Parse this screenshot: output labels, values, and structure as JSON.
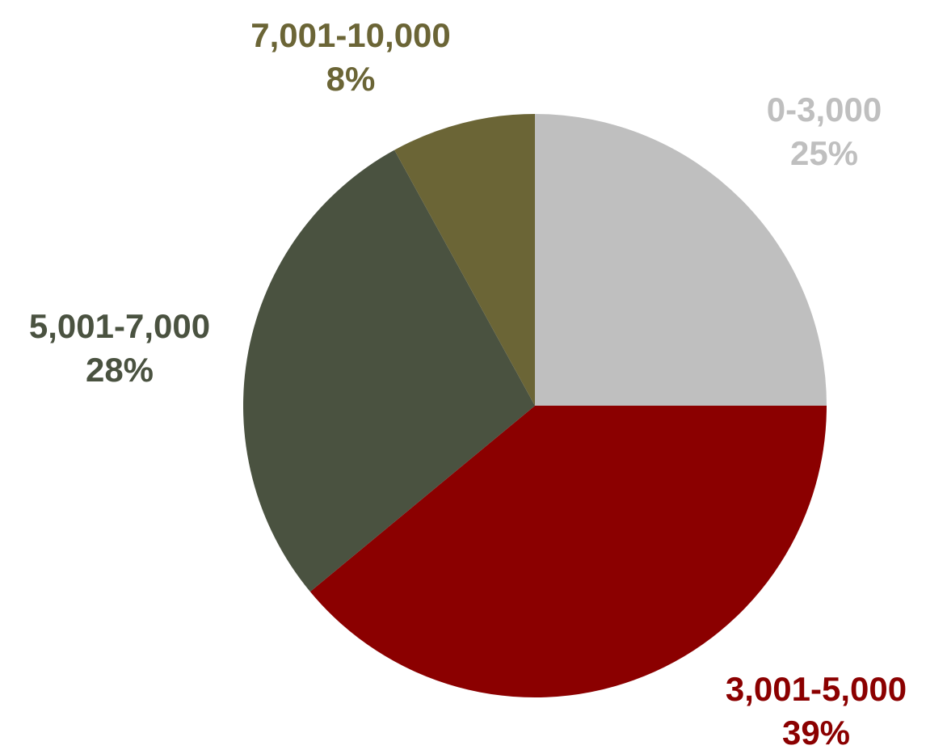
{
  "chart_data": {
    "type": "pie",
    "title": "",
    "start_angle_deg": 0,
    "direction": "clockwise",
    "slices": [
      {
        "label": "0-3,000",
        "value": 25,
        "value_label": "25%",
        "color": "#BFBFBF",
        "label_color": "#BFBFBF"
      },
      {
        "label": "3,001-5,000",
        "value": 39,
        "value_label": "39%",
        "color": "#8B0000",
        "label_color": "#8B0000"
      },
      {
        "label": "5,001-7,000",
        "value": 28,
        "value_label": "28%",
        "color": "#4A5240",
        "label_color": "#4A5240"
      },
      {
        "label": "7,001-10,000",
        "value": 8,
        "value_label": "8%",
        "color": "#6B6536",
        "label_color": "#6B6536"
      }
    ]
  }
}
